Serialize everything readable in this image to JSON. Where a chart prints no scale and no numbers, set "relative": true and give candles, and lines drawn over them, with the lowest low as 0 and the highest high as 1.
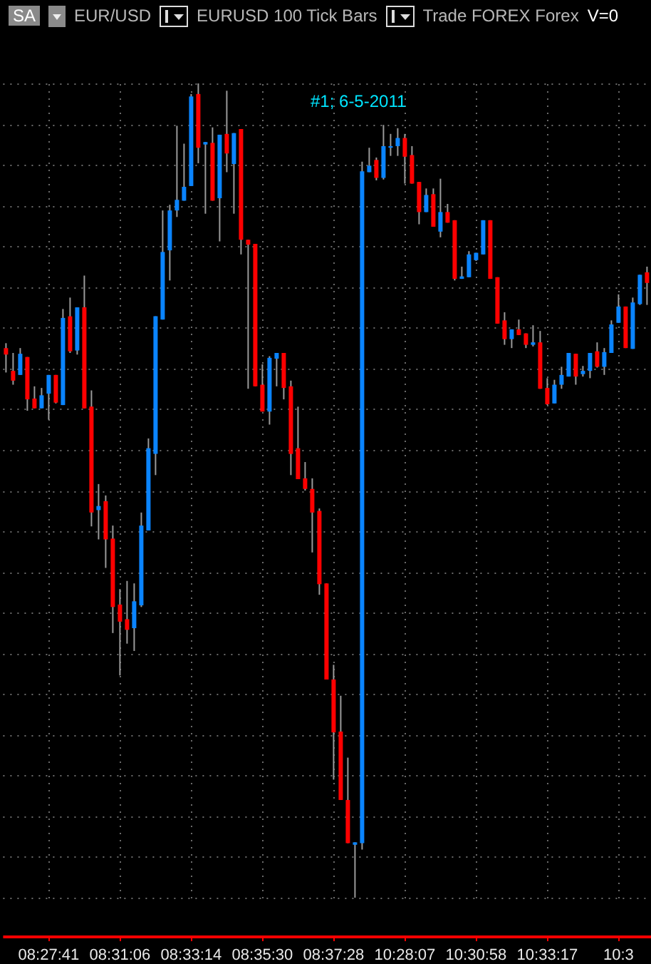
{
  "chart_data": {
    "type": "candlestick",
    "relative": true,
    "title": "EUR/USD",
    "subtitle": "EURUSD  100 Tick Bars",
    "annotations": [
      "SA",
      "Trade  FOREX  Forex",
      "V=0",
      "#1; 6-5-2011"
    ],
    "grid": true,
    "categories": [
      null,
      null,
      null,
      null,
      null,
      null,
      "08:27:41",
      null,
      null,
      null,
      null,
      null,
      null,
      null,
      null,
      null,
      "08:31:06",
      null,
      null,
      null,
      null,
      null,
      null,
      null,
      null,
      null,
      "08:33:14",
      null,
      null,
      null,
      null,
      null,
      null,
      null,
      null,
      null,
      "08:35:30",
      null,
      null,
      null,
      null,
      null,
      null,
      null,
      null,
      null,
      "08:37:28",
      null,
      null,
      null,
      null,
      null,
      null,
      null,
      null,
      null,
      "10:28:07",
      null,
      null,
      null,
      null,
      null,
      null,
      null,
      null,
      null,
      "10:30:58",
      null,
      null,
      null,
      null,
      null,
      null,
      null,
      null,
      null,
      "10:33:17",
      null,
      null,
      null,
      null,
      null,
      null,
      null,
      null,
      null,
      "10:3",
      null,
      null,
      null,
      null
    ],
    "ohlc": [
      [
        0.675,
        0.681,
        0.645,
        0.667
      ],
      [
        0.647,
        0.669,
        0.63,
        0.635
      ],
      [
        0.642,
        0.675,
        0.642,
        0.668
      ],
      [
        0.664,
        0.664,
        0.598,
        0.612
      ],
      [
        0.613,
        0.628,
        0.601,
        0.601
      ],
      [
        0.601,
        0.626,
        0.601,
        0.617
      ],
      [
        0.619,
        0.642,
        0.587,
        0.642
      ],
      [
        0.642,
        0.642,
        0.607,
        0.608
      ],
      [
        0.605,
        0.723,
        0.605,
        0.712
      ],
      [
        0.714,
        0.737,
        0.669,
        0.671
      ],
      [
        0.672,
        0.725,
        0.667,
        0.725
      ],
      [
        0.725,
        0.764,
        0.601,
        0.601
      ],
      [
        0.603,
        0.623,
        0.456,
        0.473
      ],
      [
        0.476,
        0.508,
        0.44,
        0.481
      ],
      [
        0.487,
        0.494,
        0.405,
        0.44
      ],
      [
        0.441,
        0.457,
        0.325,
        0.357
      ],
      [
        0.36,
        0.379,
        0.273,
        0.339
      ],
      [
        0.342,
        0.389,
        0.312,
        0.329
      ],
      [
        0.331,
        0.386,
        0.303,
        0.364
      ],
      [
        0.359,
        0.473,
        0.357,
        0.457
      ],
      [
        0.451,
        0.564,
        0.451,
        0.552
      ],
      [
        0.545,
        0.714,
        0.519,
        0.714
      ],
      [
        0.71,
        0.844,
        0.71,
        0.793
      ],
      [
        0.795,
        0.851,
        0.758,
        0.844
      ],
      [
        0.844,
        0.948,
        0.836,
        0.857
      ],
      [
        0.856,
        0.926,
        0.856,
        0.873
      ],
      [
        0.874,
        0.987,
        0.874,
        0.984
      ],
      [
        0.987,
        1,
        0.902,
        0.921
      ],
      [
        0.925,
        0.928,
        0.84,
        0.928
      ],
      [
        0.927,
        0.946,
        0.856,
        0.856
      ],
      [
        0.859,
        0.937,
        0.806,
        0.937
      ],
      [
        0.938,
        0.991,
        0.891,
        0.914
      ],
      [
        0.901,
        0.939,
        0.84,
        0.939
      ],
      [
        0.944,
        0.944,
        0.79,
        0.808
      ],
      [
        0.808,
        0.808,
        0.625,
        0.802
      ],
      [
        0.803,
        0.803,
        0.628,
        0.628
      ],
      [
        0.63,
        0.655,
        0.597,
        0.597
      ],
      [
        0.597,
        0.665,
        0.581,
        0.663
      ],
      [
        0.662,
        0.669,
        0.628,
        0.669
      ],
      [
        0.669,
        0.669,
        0.612,
        0.626
      ],
      [
        0.628,
        0.635,
        0.519,
        0.545
      ],
      [
        0.552,
        0.603,
        0.514,
        0.514
      ],
      [
        0.515,
        0.535,
        0.5,
        0.502
      ],
      [
        0.502,
        0.515,
        0.424,
        0.473
      ],
      [
        0.475,
        0.478,
        0.372,
        0.385
      ],
      [
        0.386,
        0.386,
        0.268,
        0.268
      ],
      [
        0.268,
        0.286,
        0.145,
        0.203
      ],
      [
        0.204,
        0.248,
        0.12,
        0.12
      ],
      [
        0.12,
        0.172,
        0.067,
        0.067
      ],
      [
        0.065,
        0.068,
        0,
        0.068
      ],
      [
        0.067,
        0.904,
        0.059,
        0.892
      ],
      [
        0.891,
        0.921,
        0.891,
        0.899
      ],
      [
        0.906,
        0.909,
        0.881,
        0.884
      ],
      [
        0.884,
        0.949,
        0.882,
        0.923
      ],
      [
        0.921,
        0.938,
        0.911,
        0.923
      ],
      [
        0.923,
        0.945,
        0.911,
        0.933
      ],
      [
        0.933,
        0.938,
        0.877,
        0.91
      ],
      [
        0.912,
        0.923,
        0.877,
        0.877
      ],
      [
        0.879,
        0.879,
        0.827,
        0.842
      ],
      [
        0.842,
        0.871,
        0.842,
        0.863
      ],
      [
        0.864,
        0.871,
        0.824,
        0.824
      ],
      [
        0.818,
        0.883,
        0.811,
        0.842
      ],
      [
        0.842,
        0.852,
        0.829,
        0.829
      ],
      [
        0.832,
        0.832,
        0.758,
        0.76
      ],
      [
        0.76,
        0.775,
        0.76,
        0.763
      ],
      [
        0.762,
        0.794,
        0.762,
        0.79
      ],
      [
        0.783,
        0.792,
        0.782,
        0.792
      ],
      [
        0.79,
        0.832,
        0.79,
        0.832
      ],
      [
        0.832,
        0.832,
        0.76,
        0.76
      ],
      [
        0.762,
        0.762,
        0.705,
        0.705
      ],
      [
        0.709,
        0.719,
        0.679,
        0.686
      ],
      [
        0.686,
        0.698,
        0.675,
        0.698
      ],
      [
        0.698,
        0.71,
        0.691,
        0.691
      ],
      [
        0.693,
        0.693,
        0.675,
        0.679
      ],
      [
        0.679,
        0.703,
        0.677,
        0.682
      ],
      [
        0.682,
        0.696,
        0.625,
        0.625
      ],
      [
        0.626,
        0.638,
        0.605,
        0.606
      ],
      [
        0.607,
        0.636,
        0.607,
        0.63
      ],
      [
        0.63,
        0.652,
        0.625,
        0.642
      ],
      [
        0.64,
        0.669,
        0.64,
        0.669
      ],
      [
        0.668,
        0.668,
        0.63,
        0.64
      ],
      [
        0.643,
        0.653,
        0.64,
        0.647
      ],
      [
        0.647,
        0.669,
        0.638,
        0.669
      ],
      [
        0.671,
        0.682,
        0.651,
        0.652
      ],
      [
        0.652,
        0.675,
        0.642,
        0.67
      ],
      [
        0.669,
        0.709,
        0.669,
        0.704
      ],
      [
        0.706,
        0.741,
        0.706,
        0.726
      ],
      [
        0.726,
        0.726,
        0.675,
        0.675
      ],
      [
        0.674,
        0.737,
        0.674,
        0.731
      ],
      [
        0.729,
        0.765,
        0.728,
        0.765
      ],
      [
        0.768,
        0.775,
        0.728,
        0.755
      ]
    ],
    "colors": [
      "#ff0000",
      "#ff0000",
      "#0a84ff",
      "#ff0000",
      "#ff0000",
      "#0a84ff",
      "#0a84ff",
      "#ff0000",
      "#0a84ff",
      "#ff0000",
      "#0a84ff",
      "#ff0000",
      "#ff0000",
      "#0a84ff",
      "#ff0000",
      "#ff0000",
      "#ff0000",
      "#ff0000",
      "#0a84ff",
      "#0a84ff",
      "#0a84ff",
      "#0a84ff",
      "#0a84ff",
      "#0a84ff",
      "#0a84ff",
      "#0a84ff",
      "#0a84ff",
      "#ff0000",
      "#0a84ff",
      "#ff0000",
      "#0a84ff",
      "#ff0000",
      "#0a84ff",
      "#ff0000",
      "#ff0000",
      "#ff0000",
      "#ff0000",
      "#0a84ff",
      "#0a84ff",
      "#ff0000",
      "#ff0000",
      "#ff0000",
      "#ff0000",
      "#ff0000",
      "#ff0000",
      "#ff0000",
      "#ff0000",
      "#ff0000",
      "#ff0000",
      "#0a84ff",
      "#0a84ff",
      "#0a84ff",
      "#ff0000",
      "#0a84ff",
      "#0a84ff",
      "#0a84ff",
      "#ff0000",
      "#ff0000",
      "#ff0000",
      "#0a84ff",
      "#ff0000",
      "#0a84ff",
      "#ff0000",
      "#ff0000",
      "#0a84ff",
      "#0a84ff",
      "#0a84ff",
      "#0a84ff",
      "#ff0000",
      "#ff0000",
      "#ff0000",
      "#0a84ff",
      "#ff0000",
      "#ff0000",
      "#0a84ff",
      "#ff0000",
      "#ff0000",
      "#0a84ff",
      "#0a84ff",
      "#0a84ff",
      "#ff0000",
      "#0a84ff",
      "#0a84ff",
      "#ff0000",
      "#0a84ff",
      "#0a84ff",
      "#0a84ff",
      "#ff0000",
      "#0a84ff",
      "#0a84ff",
      "#ff0000"
    ]
  }
}
